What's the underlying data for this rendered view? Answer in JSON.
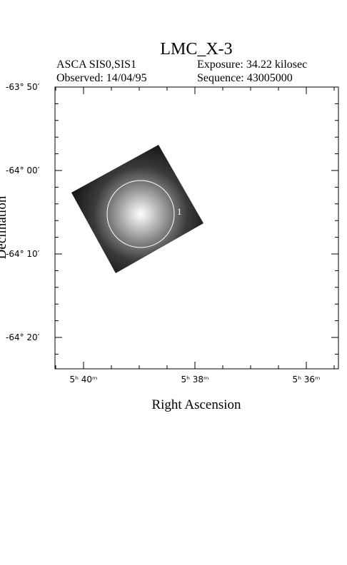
{
  "title": "LMC_X-3",
  "info": {
    "instrument": "ASCA SIS0,SIS1",
    "exposure": "Exposure: 34.22 kilosec",
    "observed": "Observed: 14/04/95",
    "sequence": "Sequence: 43005000"
  },
  "x_axis": {
    "label": "Right Ascension",
    "ticks": [
      "5ʰ 40ᵐ",
      "5ʰ 38ᵐ",
      "5ʰ 36ᵐ"
    ]
  },
  "y_axis": {
    "label": "Declination",
    "ticks": [
      "-63° 50′",
      "-64° 00′",
      "-64° 10′",
      "-64° 20′"
    ]
  },
  "region_label": "1"
}
